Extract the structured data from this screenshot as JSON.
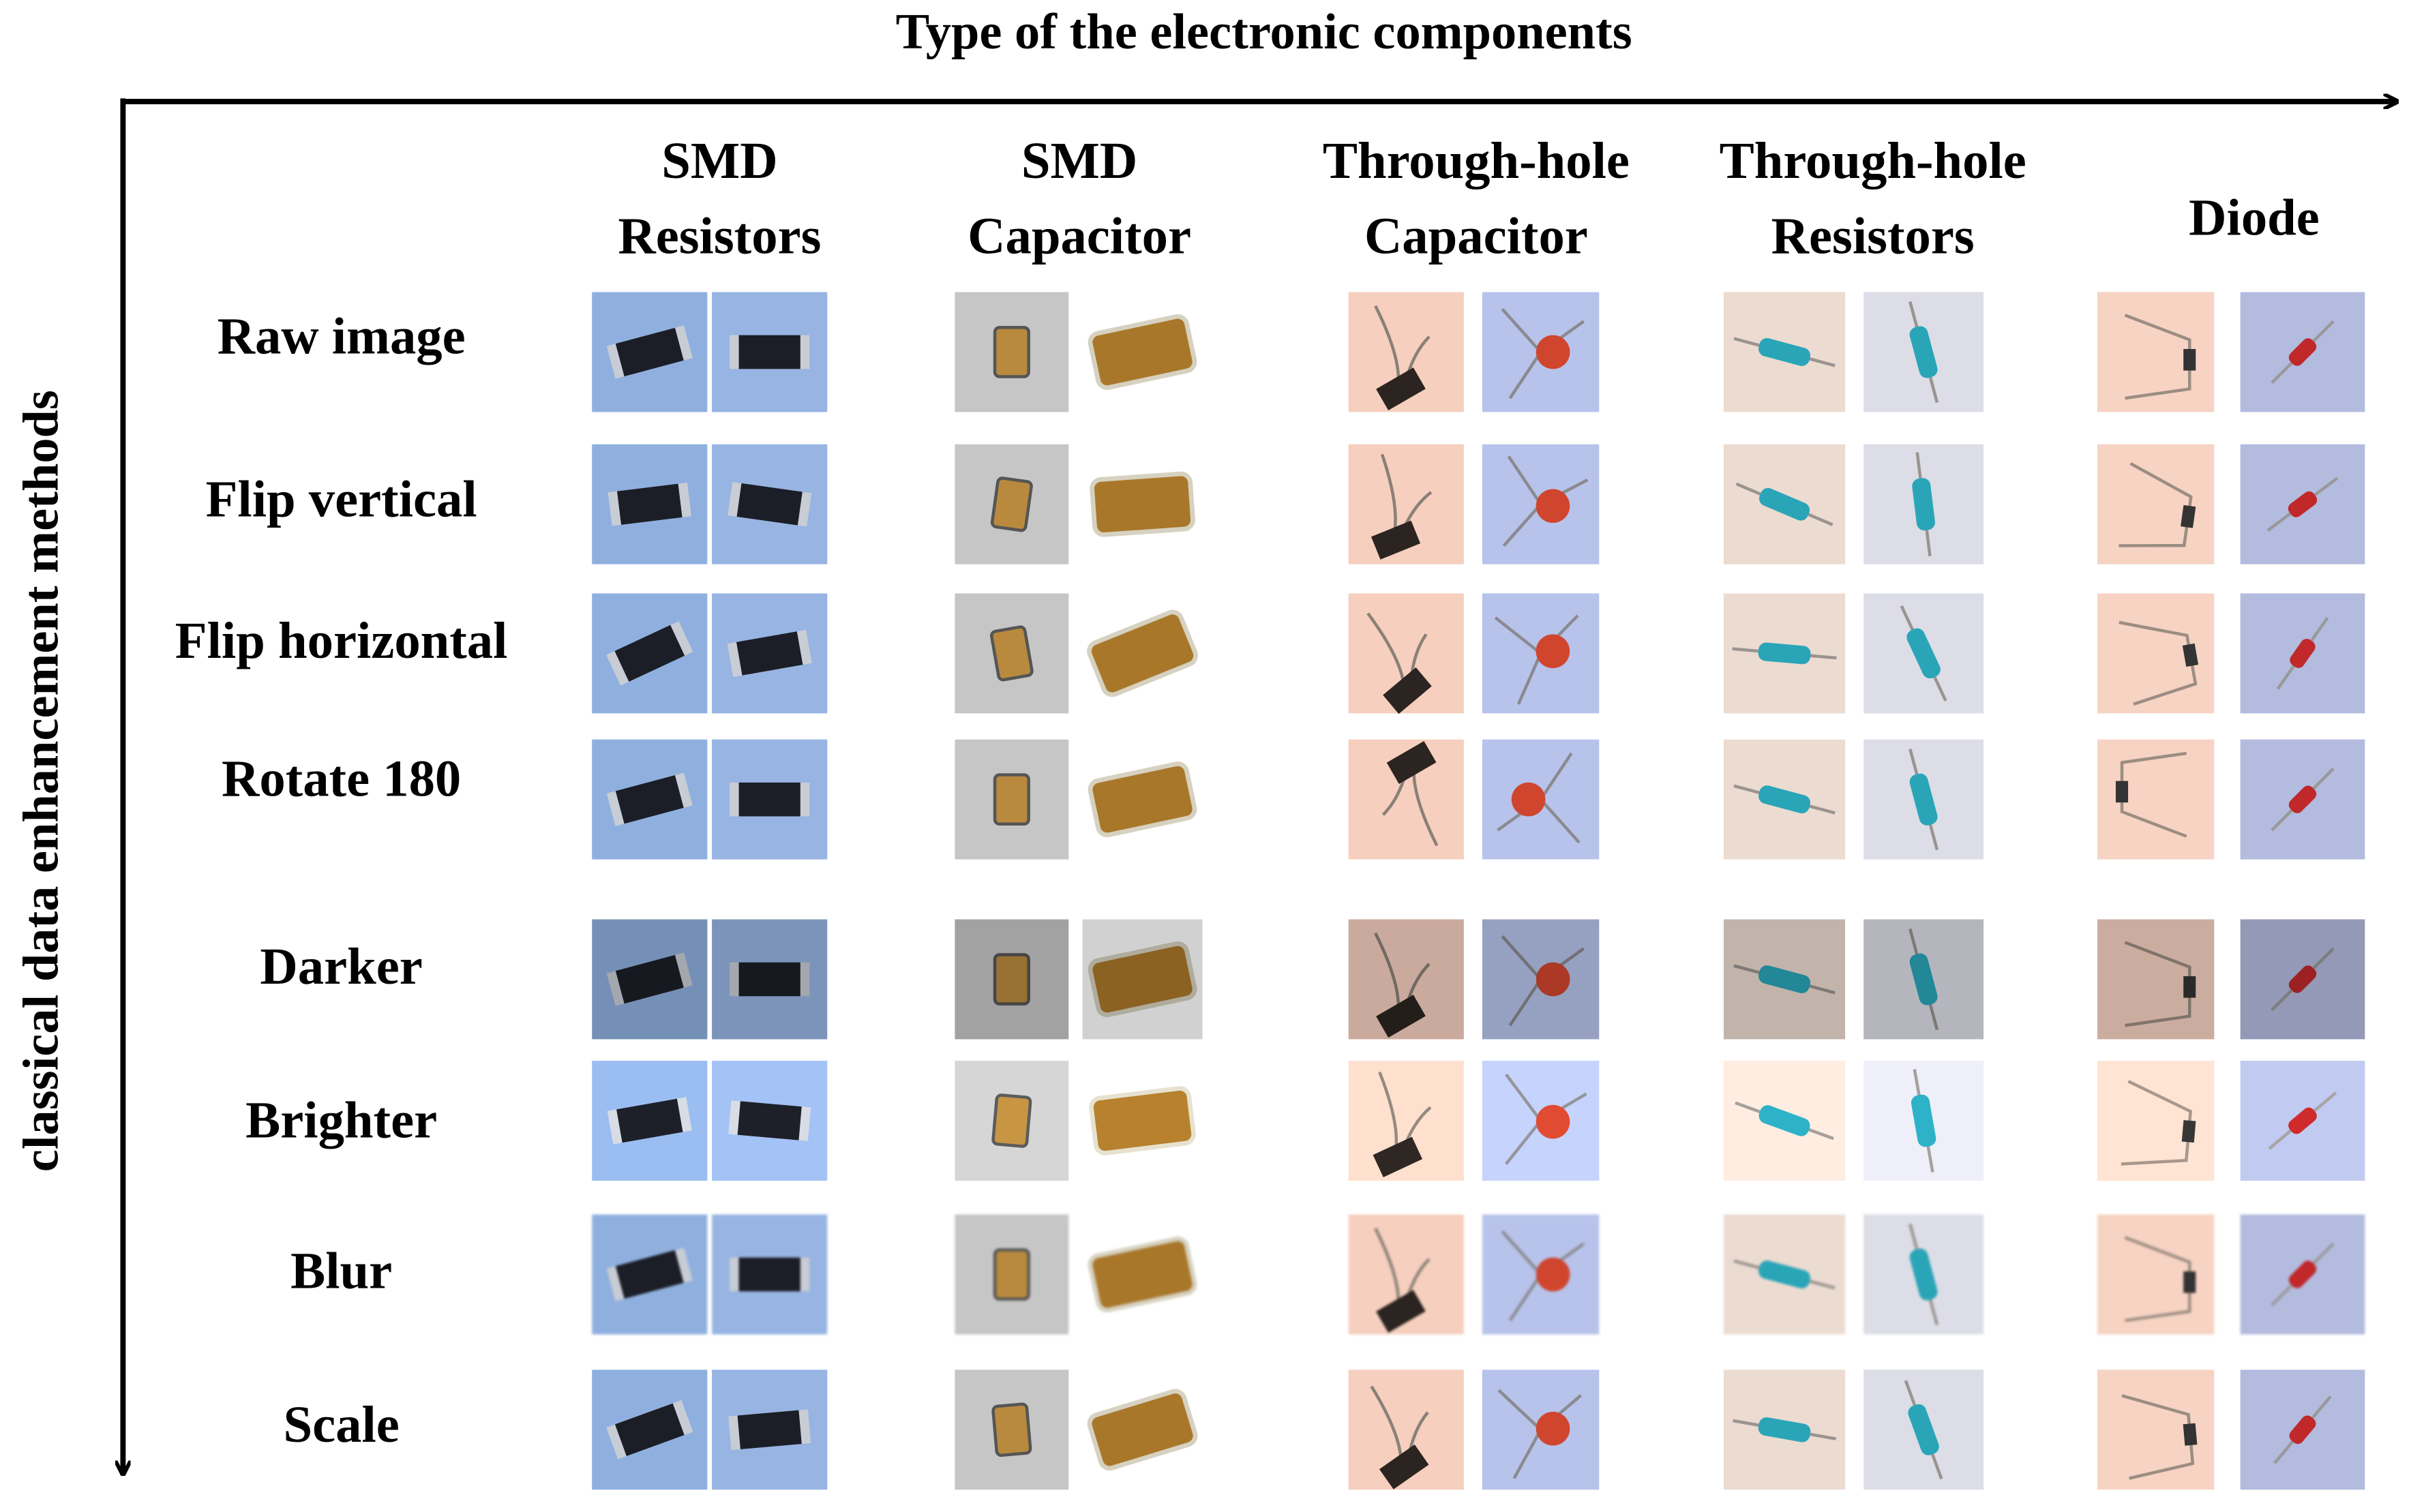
{
  "x_axis_label": "Type of the electronic components",
  "y_axis_label": "classical data enhancement methods",
  "columns": [
    {
      "lines": [
        "SMD",
        "Resistors"
      ]
    },
    {
      "lines": [
        "SMD",
        "Capacitor"
      ]
    },
    {
      "lines": [
        "Through-hole",
        "Capacitor"
      ]
    },
    {
      "lines": [
        "Through-hole",
        "Resistors"
      ]
    },
    {
      "lines": [
        "Diode"
      ]
    }
  ],
  "rows": [
    "Raw image",
    "Flip vertical",
    "Flip horizontal",
    "Rotate 180",
    "Darker",
    "Brighter",
    "Blur",
    "Scale"
  ]
}
